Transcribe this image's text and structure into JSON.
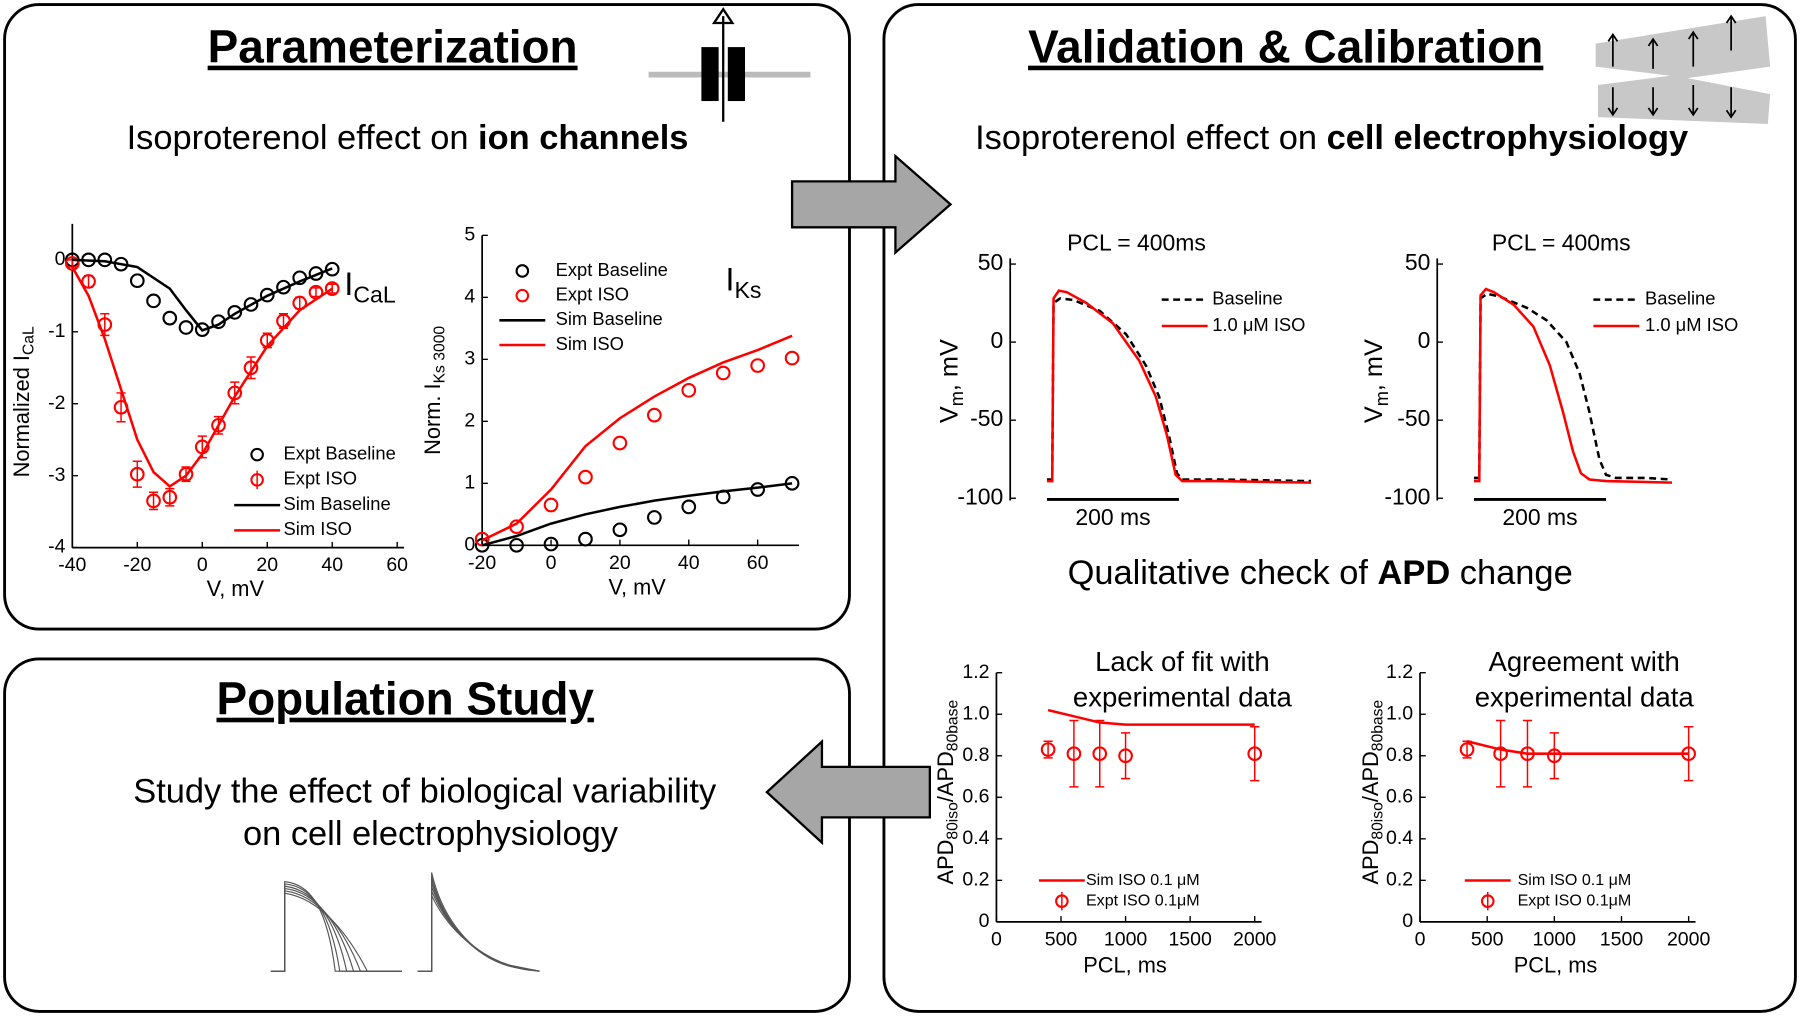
{
  "parameterization": {
    "title": "Parameterization",
    "text": "Isoproterenol effect on ",
    "bold": "ion channels"
  },
  "validation": {
    "title": "Validation & Calibration",
    "text": "Isoproterenol effect on ",
    "bold": "cell electrophysiology"
  },
  "check": {
    "text": "Qualitative check of ",
    "bold": "APD",
    "after": " change"
  },
  "population": {
    "title": "Population Study",
    "lines": [
      "Study the effect of biological variability",
      "on cell electrophysiology"
    ]
  },
  "chart_data": [
    {
      "type": "line",
      "annotation": [
        "I",
        {
          "sub": "CaL"
        }
      ],
      "xlabel": "V, mV",
      "ylabel": [
        "Normalized I",
        {
          "sub": "CaL"
        }
      ],
      "xlim": [
        -40,
        60
      ],
      "ylim": [
        -4,
        0.5
      ],
      "xticks": [
        -40,
        -20,
        0,
        20,
        40,
        60
      ],
      "yticks": [
        0,
        -1,
        -2,
        -3,
        -4
      ],
      "series": [
        {
          "name": "Expt Baseline",
          "kind": "scatter",
          "color": "#000000",
          "x": [
            -40,
            -35,
            -30,
            -25,
            -20,
            -15,
            -10,
            -5,
            0,
            5,
            10,
            15,
            20,
            25,
            30,
            35,
            40
          ],
          "values": [
            0,
            0,
            0,
            -0.06,
            -0.29,
            -0.57,
            -0.81,
            -0.94,
            -0.97,
            -0.86,
            -0.73,
            -0.62,
            -0.49,
            -0.38,
            -0.25,
            -0.19,
            -0.13
          ]
        },
        {
          "name": "Expt ISO",
          "kind": "scatter",
          "color": "#ff0000",
          "x": [
            -40,
            -35,
            -30,
            -25,
            -20,
            -15,
            -10,
            -5,
            0,
            5,
            10,
            15,
            20,
            25,
            30,
            35,
            40
          ],
          "values": [
            -0.05,
            -0.3,
            -0.9,
            -2.05,
            -2.98,
            -3.35,
            -3.3,
            -2.98,
            -2.6,
            -2.3,
            -1.85,
            -1.5,
            -1.12,
            -0.85,
            -0.6,
            -0.45,
            -0.4
          ],
          "errors": [
            0.05,
            0.08,
            0.15,
            0.2,
            0.18,
            0.12,
            0.12,
            0.1,
            0.15,
            0.12,
            0.15,
            0.15,
            0.1,
            0.1,
            0.08,
            0.06,
            0.06
          ]
        },
        {
          "name": "Sim Baseline",
          "kind": "line",
          "color": "#000000",
          "x": [
            -40,
            -30,
            -20,
            -10,
            -5,
            0,
            5,
            10,
            20,
            30,
            40
          ],
          "values": [
            0,
            -0.02,
            -0.1,
            -0.4,
            -0.7,
            -0.98,
            -0.9,
            -0.75,
            -0.5,
            -0.3,
            -0.12
          ]
        },
        {
          "name": "Sim ISO",
          "kind": "line",
          "color": "#ff0000",
          "x": [
            -40,
            -35,
            -30,
            -25,
            -20,
            -15,
            -10,
            -5,
            0,
            10,
            20,
            30,
            40
          ],
          "values": [
            -0.1,
            -0.5,
            -1.1,
            -1.8,
            -2.5,
            -2.95,
            -3.15,
            -3.0,
            -2.7,
            -1.9,
            -1.2,
            -0.7,
            -0.4
          ]
        }
      ]
    },
    {
      "type": "line",
      "annotation": [
        "I",
        {
          "sub": "Ks"
        }
      ],
      "xlabel": "V, mV",
      "ylabel": [
        "Norm. I",
        {
          "sub": "Ks 3000"
        }
      ],
      "xlim": [
        -20,
        70
      ],
      "ylim": [
        0,
        5
      ],
      "xticks": [
        -20,
        0,
        20,
        40,
        60
      ],
      "yticks": [
        0,
        1,
        2,
        3,
        4,
        5
      ],
      "series": [
        {
          "name": "Expt Baseline",
          "kind": "scatter",
          "color": "#000000",
          "x": [
            -20,
            -10,
            0,
            10,
            20,
            30,
            40,
            50,
            60,
            70
          ],
          "values": [
            0,
            0,
            0.02,
            0.1,
            0.25,
            0.45,
            0.62,
            0.78,
            0.9,
            1.0
          ]
        },
        {
          "name": "Expt ISO",
          "kind": "scatter",
          "color": "#ff0000",
          "x": [
            -20,
            -10,
            0,
            10,
            20,
            30,
            40,
            50,
            60,
            70
          ],
          "values": [
            0.1,
            0.3,
            0.65,
            1.1,
            1.65,
            2.1,
            2.5,
            2.78,
            2.9,
            3.02
          ]
        },
        {
          "name": "Sim Baseline",
          "kind": "line",
          "color": "#000000",
          "x": [
            -20,
            -10,
            0,
            10,
            20,
            30,
            40,
            50,
            60,
            70
          ],
          "values": [
            0,
            0.15,
            0.35,
            0.5,
            0.62,
            0.72,
            0.8,
            0.87,
            0.93,
            1.0
          ]
        },
        {
          "name": "Sim ISO",
          "kind": "line",
          "color": "#ff0000",
          "x": [
            -20,
            -10,
            0,
            10,
            20,
            30,
            40,
            50,
            60,
            70
          ],
          "values": [
            0.08,
            0.35,
            0.9,
            1.6,
            2.05,
            2.4,
            2.7,
            2.95,
            3.15,
            3.38
          ]
        }
      ]
    },
    {
      "type": "trace",
      "title": "PCL = 400ms",
      "ylabel": [
        "V",
        {
          "sub": "m"
        },
        ", mV"
      ],
      "ylim": [
        -100,
        50
      ],
      "yticks": [
        50,
        0,
        -50,
        -100
      ],
      "scale_bar": {
        "value": 200,
        "label": "200 ms"
      },
      "series": [
        {
          "name": "Baseline",
          "kind": "line",
          "dash": true,
          "color": "#000000",
          "x": [
            0,
            8,
            10,
            20,
            40,
            80,
            120,
            150,
            170,
            185,
            197,
            205,
            260,
            400
          ],
          "values": [
            -88,
            -88,
            25,
            28,
            27,
            20,
            5,
            -15,
            -35,
            -60,
            -84,
            -88,
            -88,
            -89
          ]
        },
        {
          "name": "1.0 μM ISO",
          "kind": "line",
          "color": "#ff0000",
          "x": [
            0,
            8,
            10,
            18,
            30,
            60,
            100,
            140,
            165,
            182,
            195,
            205,
            260,
            400
          ],
          "values": [
            -89,
            -89,
            28,
            33,
            32,
            25,
            12,
            -12,
            -35,
            -60,
            -85,
            -89,
            -89,
            -90
          ]
        }
      ]
    },
    {
      "type": "trace",
      "title": "PCL = 400ms",
      "ylabel": [
        "V",
        {
          "sub": "m"
        },
        ", mV"
      ],
      "ylim": [
        -100,
        50
      ],
      "yticks": [
        50,
        0,
        -50,
        -100
      ],
      "scale_bar": {
        "value": 200,
        "label": "200 ms"
      },
      "series": [
        {
          "name": "Baseline",
          "kind": "line",
          "dash": true,
          "color": "#000000",
          "x": [
            0,
            8,
            10,
            20,
            40,
            80,
            110,
            140,
            160,
            175,
            190,
            200,
            215,
            260,
            300
          ],
          "values": [
            -87,
            -87,
            28,
            31,
            29,
            22,
            14,
            0,
            -20,
            -45,
            -75,
            -85,
            -87,
            -87,
            -88
          ]
        },
        {
          "name": "1.0 μM ISO",
          "kind": "line",
          "color": "#ff0000",
          "x": [
            0,
            8,
            10,
            18,
            30,
            60,
            90,
            115,
            135,
            150,
            162,
            175,
            200,
            300
          ],
          "values": [
            -89,
            -89,
            30,
            34,
            32,
            24,
            10,
            -15,
            -45,
            -70,
            -84,
            -88,
            -89,
            -90
          ]
        }
      ]
    },
    {
      "type": "line",
      "title": [
        "Lack of fit with",
        "experimental data"
      ],
      "xlabel": "PCL, ms",
      "ylabel": [
        "APD",
        {
          "sub": "80iso"
        },
        "/APD",
        {
          "sub": "80base"
        }
      ],
      "xlim": [
        0,
        2000
      ],
      "ylim": [
        0,
        1.2
      ],
      "xticks": [
        0,
        500,
        1000,
        1500,
        2000
      ],
      "yticks": [
        0,
        0.2,
        0.4,
        0.6,
        0.8,
        {
          "value": 1,
          "label": "1.0"
        },
        1.2
      ],
      "series": [
        {
          "name": "Sim ISO 0.1 μM",
          "kind": "line",
          "color": "#ff0000",
          "x": [
            400,
            600,
            800,
            1000,
            1500,
            2000
          ],
          "values": [
            1.02,
            0.99,
            0.96,
            0.95,
            0.95,
            0.95
          ]
        },
        {
          "name": "Expt ISO 0.1μM",
          "kind": "scatter",
          "color": "#ff0000",
          "x": [
            400,
            600,
            800,
            1000,
            2000
          ],
          "values": [
            0.83,
            0.81,
            0.81,
            0.8,
            0.81
          ],
          "errors": [
            0.04,
            0.16,
            0.16,
            0.11,
            0.13
          ]
        }
      ]
    },
    {
      "type": "line",
      "title": [
        "Agreement with",
        "experimental data"
      ],
      "xlabel": "PCL, ms",
      "ylabel": [
        "APD",
        {
          "sub": "80iso"
        },
        "/APD",
        {
          "sub": "80base"
        }
      ],
      "xlim": [
        0,
        2000
      ],
      "ylim": [
        0,
        1.2
      ],
      "xticks": [
        0,
        500,
        1000,
        1500,
        2000
      ],
      "yticks": [
        0,
        0.2,
        0.4,
        0.6,
        0.8,
        {
          "value": 1,
          "label": "1.0"
        },
        1.2
      ],
      "series": [
        {
          "name": "Sim ISO 0.1 μM",
          "kind": "line",
          "color": "#ff0000",
          "x": [
            350,
            600,
            800,
            1000,
            2000
          ],
          "values": [
            0.87,
            0.83,
            0.81,
            0.81,
            0.81
          ]
        },
        {
          "name": "Expt ISO 0.1μM",
          "kind": "scatter",
          "color": "#ff0000",
          "x": [
            350,
            600,
            800,
            1000,
            2000
          ],
          "values": [
            0.83,
            0.81,
            0.81,
            0.8,
            0.81
          ],
          "errors": [
            0.04,
            0.16,
            0.16,
            0.11,
            0.13
          ]
        }
      ]
    }
  ]
}
